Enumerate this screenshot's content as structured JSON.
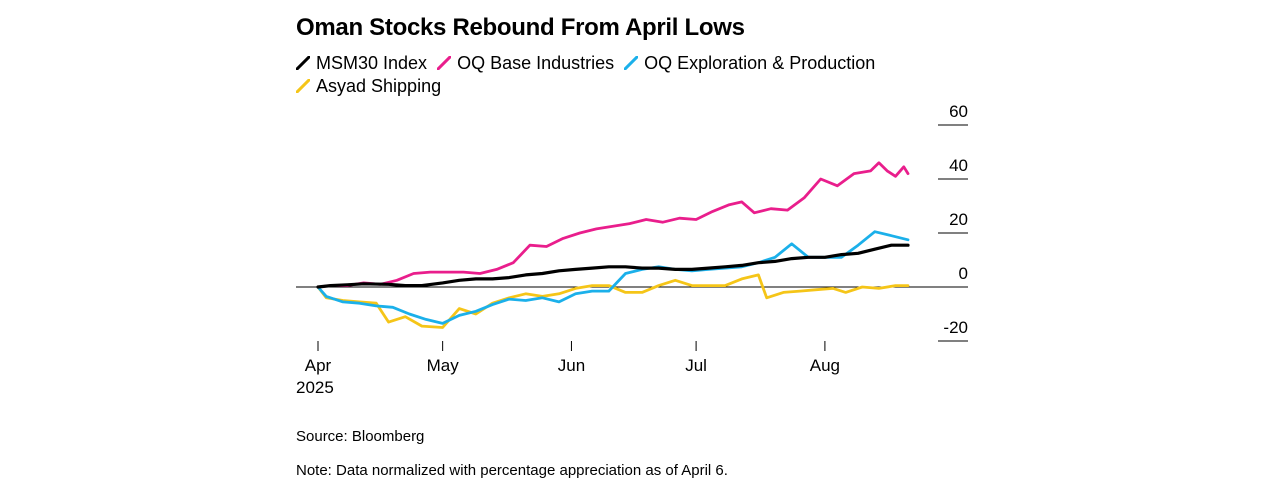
{
  "title": "Oman Stocks Rebound From April Lows",
  "source": "Source: Bloomberg",
  "note": "Note: Data normalized with percentage appreciation as of April 6.",
  "chart_data": {
    "type": "line",
    "title": "Oman Stocks Rebound From April Lows",
    "xlabel": "",
    "ylabel": "",
    "x_type": "date",
    "xlim": [
      "2025-04-01",
      "2025-08-21"
    ],
    "ylim": [
      -20,
      60
    ],
    "yticks": [
      -20,
      0,
      20,
      40,
      60
    ],
    "ytick_labels": [
      "-20",
      "0",
      "20",
      "40",
      "60"
    ],
    "y_axis_position": "right",
    "xticks": [
      "2025-04-01",
      "2025-05-01",
      "2025-06-01",
      "2025-07-01",
      "2025-08-01"
    ],
    "xtick_labels": [
      "Apr",
      "May",
      "Jun",
      "Jul",
      "Aug"
    ],
    "year_label": "2025",
    "grid": false,
    "zero_line": true,
    "legend_position": "top-left",
    "series": [
      {
        "name": "MSM30 Index",
        "color": "#000000",
        "points": [
          [
            "2025-04-01",
            0
          ],
          [
            "2025-04-04",
            0.5
          ],
          [
            "2025-04-08",
            0.8
          ],
          [
            "2025-04-12",
            1.2
          ],
          [
            "2025-04-18",
            1.0
          ],
          [
            "2025-04-22",
            0.5
          ],
          [
            "2025-04-26",
            0.5
          ],
          [
            "2025-05-01",
            1.5
          ],
          [
            "2025-05-05",
            2.5
          ],
          [
            "2025-05-09",
            3.0
          ],
          [
            "2025-05-13",
            3.0
          ],
          [
            "2025-05-17",
            3.5
          ],
          [
            "2025-05-21",
            4.5
          ],
          [
            "2025-05-25",
            5.0
          ],
          [
            "2025-05-29",
            6.0
          ],
          [
            "2025-06-02",
            6.5
          ],
          [
            "2025-06-06",
            7.0
          ],
          [
            "2025-06-10",
            7.5
          ],
          [
            "2025-06-14",
            7.5
          ],
          [
            "2025-06-18",
            7.0
          ],
          [
            "2025-06-22",
            7.0
          ],
          [
            "2025-06-26",
            6.5
          ],
          [
            "2025-06-30",
            6.5
          ],
          [
            "2025-07-04",
            7.0
          ],
          [
            "2025-07-08",
            7.5
          ],
          [
            "2025-07-12",
            8.0
          ],
          [
            "2025-07-16",
            9.0
          ],
          [
            "2025-07-20",
            9.5
          ],
          [
            "2025-07-24",
            10.5
          ],
          [
            "2025-07-28",
            11.0
          ],
          [
            "2025-08-01",
            11.0
          ],
          [
            "2025-08-05",
            12.0
          ],
          [
            "2025-08-09",
            12.5
          ],
          [
            "2025-08-13",
            14.0
          ],
          [
            "2025-08-17",
            15.5
          ],
          [
            "2025-08-21",
            15.5
          ]
        ]
      },
      {
        "name": "OQ Base Industries",
        "color": "#e91e8c",
        "points": [
          [
            "2025-04-01",
            0
          ],
          [
            "2025-04-04",
            0.5
          ],
          [
            "2025-04-08",
            0.5
          ],
          [
            "2025-04-12",
            1.5
          ],
          [
            "2025-04-16",
            1.0
          ],
          [
            "2025-04-20",
            2.5
          ],
          [
            "2025-04-24",
            5.0
          ],
          [
            "2025-04-28",
            5.5
          ],
          [
            "2025-05-02",
            5.5
          ],
          [
            "2025-05-06",
            5.5
          ],
          [
            "2025-05-10",
            5.0
          ],
          [
            "2025-05-14",
            6.5
          ],
          [
            "2025-05-18",
            9.0
          ],
          [
            "2025-05-22",
            15.5
          ],
          [
            "2025-05-26",
            15.0
          ],
          [
            "2025-05-30",
            18.0
          ],
          [
            "2025-06-03",
            20.0
          ],
          [
            "2025-06-07",
            21.5
          ],
          [
            "2025-06-11",
            22.5
          ],
          [
            "2025-06-15",
            23.5
          ],
          [
            "2025-06-19",
            25.0
          ],
          [
            "2025-06-23",
            24.0
          ],
          [
            "2025-06-27",
            25.5
          ],
          [
            "2025-07-01",
            25.0
          ],
          [
            "2025-07-05",
            28.0
          ],
          [
            "2025-07-09",
            30.5
          ],
          [
            "2025-07-12",
            31.5
          ],
          [
            "2025-07-15",
            27.5
          ],
          [
            "2025-07-19",
            29.0
          ],
          [
            "2025-07-23",
            28.5
          ],
          [
            "2025-07-27",
            33.0
          ],
          [
            "2025-07-31",
            40.0
          ],
          [
            "2025-08-04",
            37.5
          ],
          [
            "2025-08-08",
            42.0
          ],
          [
            "2025-08-12",
            43.0
          ],
          [
            "2025-08-14",
            46.0
          ],
          [
            "2025-08-16",
            43.0
          ],
          [
            "2025-08-18",
            41.0
          ],
          [
            "2025-08-20",
            44.5
          ],
          [
            "2025-08-21",
            42.0
          ]
        ]
      },
      {
        "name": "OQ Exploration & Production",
        "color": "#1bb0ea",
        "points": [
          [
            "2025-04-01",
            0
          ],
          [
            "2025-04-03",
            -3.5
          ],
          [
            "2025-04-07",
            -5.5
          ],
          [
            "2025-04-11",
            -6.0
          ],
          [
            "2025-04-15",
            -7.0
          ],
          [
            "2025-04-19",
            -7.5
          ],
          [
            "2025-04-23",
            -10.0
          ],
          [
            "2025-04-27",
            -12.0
          ],
          [
            "2025-05-01",
            -13.5
          ],
          [
            "2025-05-05",
            -10.5
          ],
          [
            "2025-05-09",
            -9.0
          ],
          [
            "2025-05-13",
            -6.5
          ],
          [
            "2025-05-17",
            -4.5
          ],
          [
            "2025-05-21",
            -5.0
          ],
          [
            "2025-05-25",
            -4.0
          ],
          [
            "2025-05-29",
            -5.5
          ],
          [
            "2025-06-02",
            -2.5
          ],
          [
            "2025-06-06",
            -1.5
          ],
          [
            "2025-06-10",
            -1.5
          ],
          [
            "2025-06-14",
            5.0
          ],
          [
            "2025-06-18",
            6.5
          ],
          [
            "2025-06-22",
            7.5
          ],
          [
            "2025-06-26",
            6.5
          ],
          [
            "2025-06-30",
            6.0
          ],
          [
            "2025-07-04",
            6.5
          ],
          [
            "2025-07-08",
            7.0
          ],
          [
            "2025-07-12",
            7.5
          ],
          [
            "2025-07-16",
            9.0
          ],
          [
            "2025-07-20",
            11.0
          ],
          [
            "2025-07-24",
            16.0
          ],
          [
            "2025-07-28",
            11.0
          ],
          [
            "2025-08-01",
            11.0
          ],
          [
            "2025-08-05",
            11.0
          ],
          [
            "2025-08-09",
            15.5
          ],
          [
            "2025-08-13",
            20.5
          ],
          [
            "2025-08-17",
            19.0
          ],
          [
            "2025-08-21",
            17.5
          ]
        ]
      },
      {
        "name": "Asyad Shipping",
        "color": "#f5c518",
        "points": [
          [
            "2025-04-01",
            0
          ],
          [
            "2025-04-03",
            -4.0
          ],
          [
            "2025-04-07",
            -5.0
          ],
          [
            "2025-04-11",
            -5.5
          ],
          [
            "2025-04-15",
            -6.0
          ],
          [
            "2025-04-18",
            -13.0
          ],
          [
            "2025-04-22",
            -11.0
          ],
          [
            "2025-04-26",
            -14.5
          ],
          [
            "2025-05-01",
            -15.0
          ],
          [
            "2025-05-05",
            -8.0
          ],
          [
            "2025-05-09",
            -10.0
          ],
          [
            "2025-05-13",
            -6.0
          ],
          [
            "2025-05-17",
            -4.0
          ],
          [
            "2025-05-21",
            -2.5
          ],
          [
            "2025-05-25",
            -3.5
          ],
          [
            "2025-05-29",
            -2.5
          ],
          [
            "2025-06-02",
            -0.5
          ],
          [
            "2025-06-06",
            0.5
          ],
          [
            "2025-06-10",
            0.5
          ],
          [
            "2025-06-14",
            -2.0
          ],
          [
            "2025-06-18",
            -2.0
          ],
          [
            "2025-06-22",
            0.5
          ],
          [
            "2025-06-26",
            2.5
          ],
          [
            "2025-06-30",
            0.5
          ],
          [
            "2025-07-04",
            0.5
          ],
          [
            "2025-07-08",
            0.5
          ],
          [
            "2025-07-12",
            3.0
          ],
          [
            "2025-07-16",
            4.5
          ],
          [
            "2025-07-18",
            -4.0
          ],
          [
            "2025-07-22",
            -2.0
          ],
          [
            "2025-07-26",
            -1.5
          ],
          [
            "2025-07-30",
            -1.0
          ],
          [
            "2025-08-03",
            -0.5
          ],
          [
            "2025-08-06",
            -2.0
          ],
          [
            "2025-08-10",
            0.0
          ],
          [
            "2025-08-14",
            -0.5
          ],
          [
            "2025-08-18",
            0.5
          ],
          [
            "2025-08-21",
            0.5
          ]
        ]
      }
    ]
  }
}
